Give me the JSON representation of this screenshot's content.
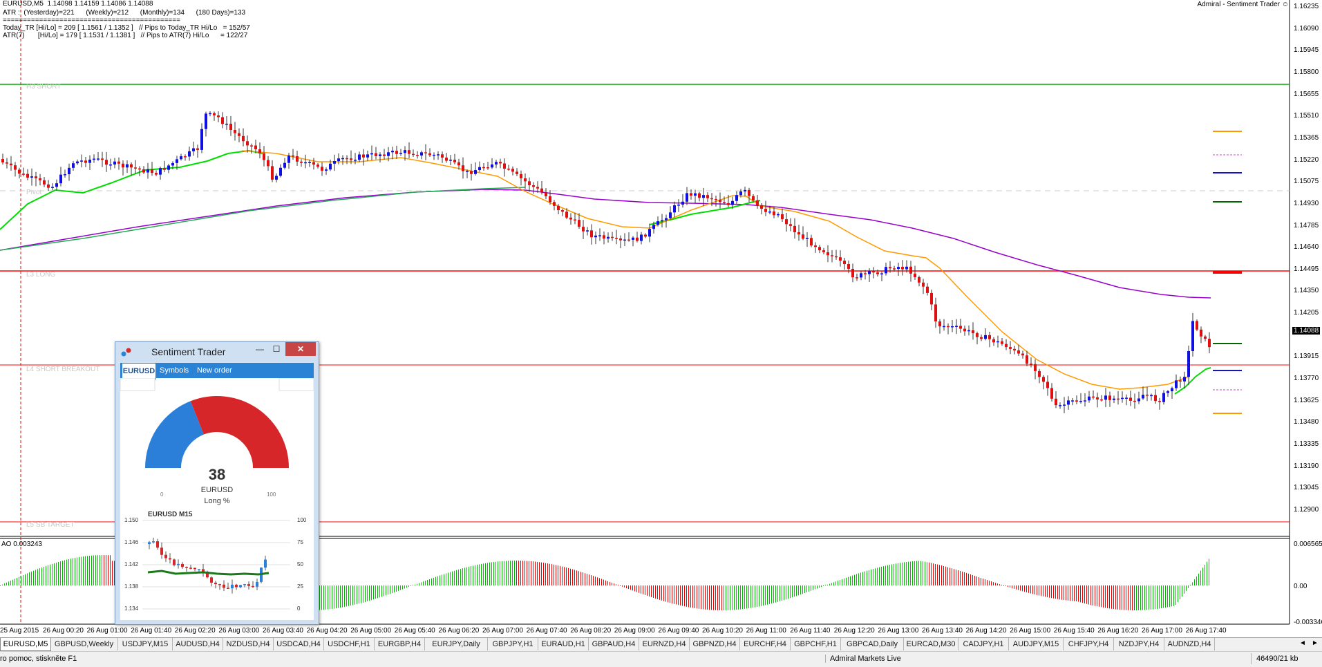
{
  "chart": {
    "header_line1": "EURUSD,M5  1.14098 1.14159 1.14086 1.14088",
    "header_line2": "ATR :  (Yesterday)=221      (Weekly)=212      (Monthly)=134      (180 Days)=133",
    "header_line3": "============================================",
    "header_line4": "Today_TR [Hi/Lo] = 209 [ 1.1561 / 1.1352 ]   // Pips to Today_TR Hi/Lo   = 152/57",
    "header_line5": "ATR(7)       [Hi/Lo] = 179 [ 1.1531 / 1.1381 ]   // Pips to ATR(7) Hi/Lo      = 122/27",
    "indicator_name": "Admiral - Sentiment Trader ☺",
    "level_h3": "H3 SHORT",
    "level_pivot": "Pivot",
    "level_l3": "L3 LONG",
    "level_l4": "L4 SHORT BREAKOUT",
    "level_l5": "L5 SB TARGET",
    "price_scale": [
      "1.16235",
      "1.16090",
      "1.15945",
      "1.15800",
      "1.15655",
      "1.15510",
      "1.15365",
      "1.15220",
      "1.15075",
      "1.14930",
      "1.14785",
      "1.14640",
      "1.14495",
      "1.14350",
      "1.14205",
      "1.14088",
      "1.13915",
      "1.13770",
      "1.13625",
      "1.13480",
      "1.13335",
      "1.13190",
      "1.13045",
      "1.12900"
    ],
    "current_price": "1.14088",
    "ao_label": "AO 0.003243",
    "ao_scale": [
      "0.006565",
      "0.00",
      "-0.003346"
    ],
    "time_axis": [
      "25 Aug 2015",
      "26 Aug 00:20",
      "26 Aug 01:00",
      "26 Aug 01:40",
      "26 Aug 02:20",
      "26 Aug 03:00",
      "26 Aug 03:40",
      "26 Aug 04:20",
      "26 Aug 05:00",
      "26 Aug 05:40",
      "26 Aug 06:20",
      "26 Aug 07:00",
      "26 Aug 07:40",
      "26 Aug 08:20",
      "26 Aug 09:00",
      "26 Aug 09:40",
      "26 Aug 10:20",
      "26 Aug 11:00",
      "26 Aug 11:40",
      "26 Aug 12:20",
      "26 Aug 13:00",
      "26 Aug 13:40",
      "26 Aug 14:20",
      "26 Aug 15:00",
      "26 Aug 15:40",
      "26 Aug 16:20",
      "26 Aug 17:00",
      "26 Aug 17:40"
    ],
    "colors": {
      "bull": "#1010e0",
      "bear": "#e01010",
      "ema_fast": "#00dd00",
      "ema_mid": "#ff9900",
      "ema_slow": "#9900cc",
      "ema_long": "#22aa55",
      "level_green": "#00aa00",
      "level_red": "#ff0000"
    }
  },
  "tabs": [
    {
      "label": "EURUSD,M5",
      "active": true
    },
    {
      "label": "GBPUSD,Weekly"
    },
    {
      "label": "USDJPY,M15"
    },
    {
      "label": "AUDUSD,H4"
    },
    {
      "label": "NZDUSD,H4"
    },
    {
      "label": "USDCAD,H4"
    },
    {
      "label": "USDCHF,H1"
    },
    {
      "label": "EURGBP,H4"
    },
    {
      "label": "EURJPY,Daily"
    },
    {
      "label": "GBPJPY,H1"
    },
    {
      "label": "EURAUD,H1"
    },
    {
      "label": "GBPAUD,H4"
    },
    {
      "label": "EURNZD,H4"
    },
    {
      "label": "GBPNZD,H4"
    },
    {
      "label": "EURCHF,H4"
    },
    {
      "label": "GBPCHF,H1"
    },
    {
      "label": "GBPCAD,Daily"
    },
    {
      "label": "EURCAD,M30"
    },
    {
      "label": "CADJPY,H1"
    },
    {
      "label": "AUDJPY,M15"
    },
    {
      "label": "CHFJPY,H4"
    },
    {
      "label": "NZDJPY,H4"
    },
    {
      "label": "AUDNZD,H4"
    }
  ],
  "status": {
    "help": "ro pomoc, stiskněte F1",
    "server": "Admiral Markets Live",
    "traffic": "46490/21 kb"
  },
  "sentiment": {
    "title": "Sentiment Trader",
    "nav": [
      "EURUSD",
      "Symbols",
      "New order"
    ],
    "long_percent": 38,
    "value_label": "38",
    "symbol": "EURUSD",
    "caption": "Long %",
    "gauge_min": "0",
    "gauge_max": "100",
    "mini_title": "EURUSD M15",
    "mini_left_scale": [
      "1.150",
      "1.146",
      "1.142",
      "1.138",
      "1.134"
    ],
    "mini_right_scale": [
      "100",
      "75",
      "50",
      "25",
      "0"
    ]
  }
}
